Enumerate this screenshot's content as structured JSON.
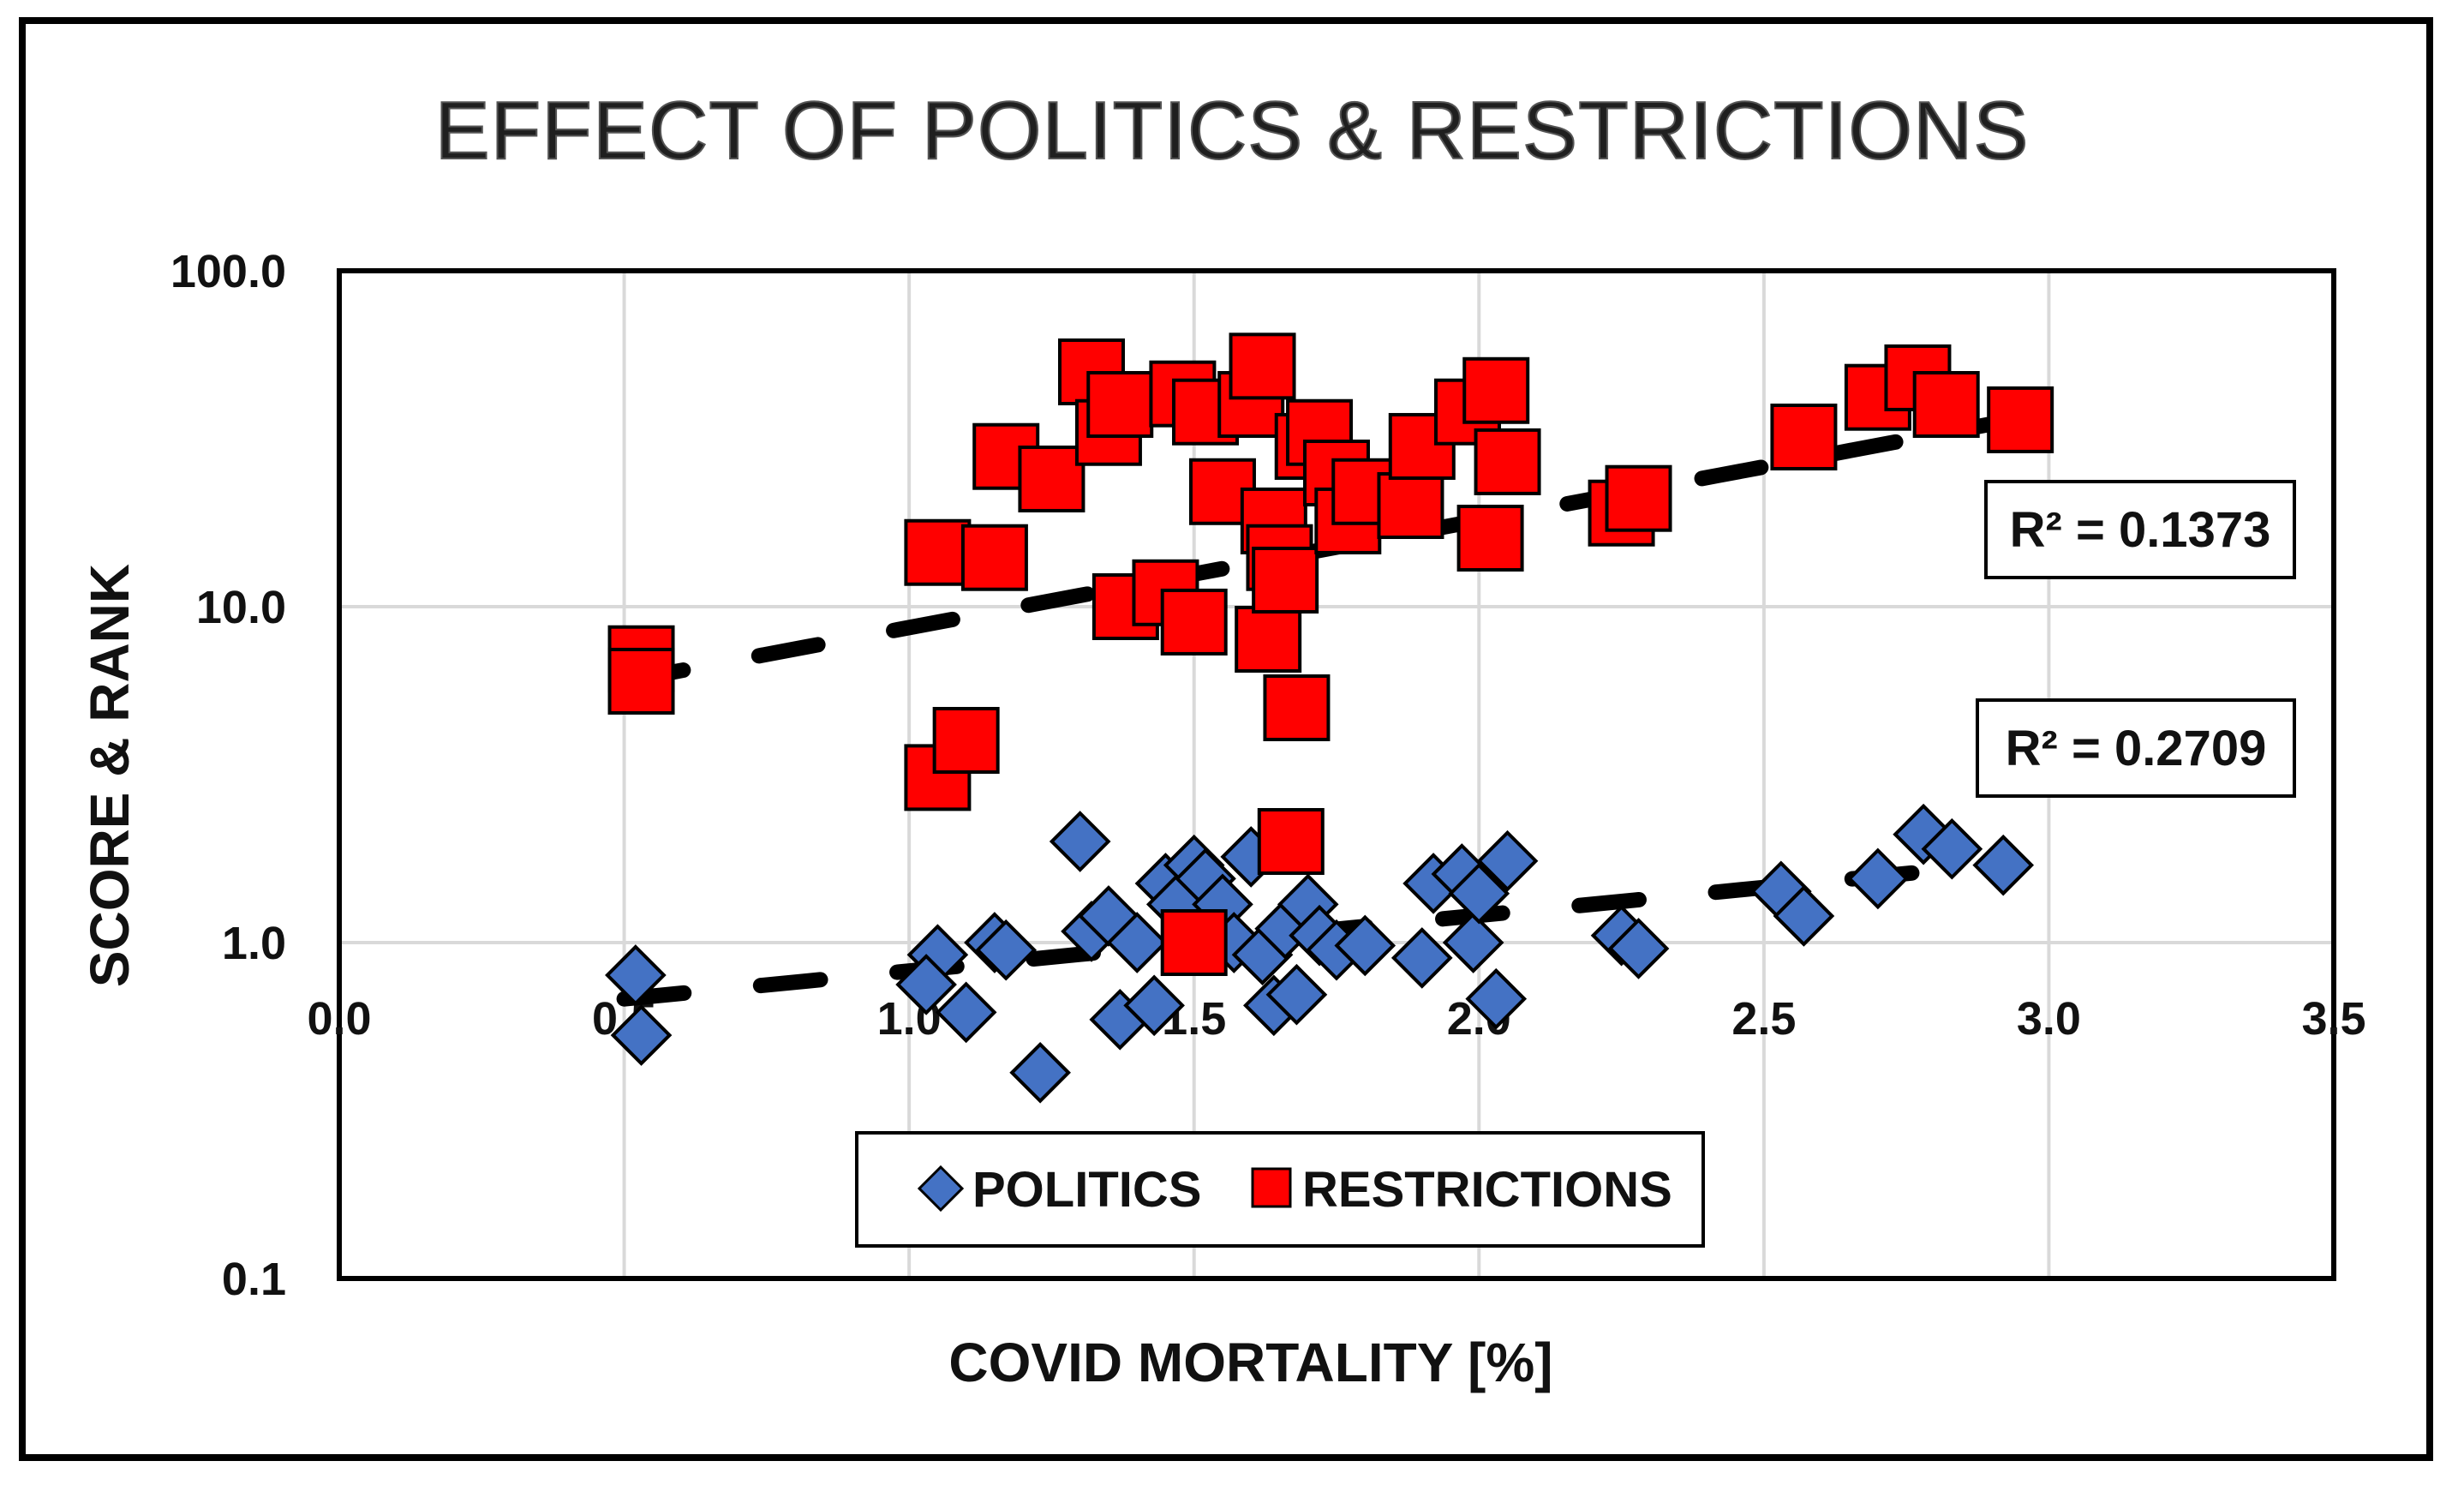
{
  "chart_data": {
    "type": "scatter",
    "title": "EFFECT OF POLITICS & RESTRICTIONS",
    "xlabel": "COVID MORTALITY [%]",
    "ylabel": "SCORE & RANK",
    "xlim": [
      0.0,
      3.5
    ],
    "ylim": [
      0.1,
      100.0
    ],
    "yscale": "log",
    "grid": true,
    "legend_position": "bottom-center",
    "x_ticks": [
      "0.0",
      "0.5",
      "1.0",
      "1.5",
      "2.0",
      "2.5",
      "3.0",
      "3.5"
    ],
    "y_ticks": [
      "0.1",
      "1.0",
      "10.0",
      "100.0"
    ],
    "series": [
      {
        "name": "POLITICS",
        "marker": "diamond",
        "color": "#4472C4",
        "r2_label": "R² = 0.2709",
        "trendline": {
          "x": [
            0.5,
            2.9
          ],
          "y": [
            0.68,
            1.7
          ]
        },
        "points": [
          [
            0.52,
            0.8
          ],
          [
            0.53,
            0.53
          ],
          [
            1.05,
            0.92
          ],
          [
            1.03,
            0.75
          ],
          [
            1.1,
            0.62
          ],
          [
            1.15,
            1.0
          ],
          [
            1.17,
            0.95
          ],
          [
            1.23,
            0.41
          ],
          [
            1.3,
            2.0
          ],
          [
            1.32,
            1.08
          ],
          [
            1.35,
            1.2
          ],
          [
            1.37,
            0.59
          ],
          [
            1.4,
            1.0
          ],
          [
            1.43,
            0.65
          ],
          [
            1.45,
            1.5
          ],
          [
            1.47,
            1.3
          ],
          [
            1.5,
            1.7
          ],
          [
            1.52,
            1.55
          ],
          [
            1.55,
            1.3
          ],
          [
            1.57,
            1.0
          ],
          [
            1.6,
            1.8
          ],
          [
            1.62,
            0.92
          ],
          [
            1.64,
            0.65
          ],
          [
            1.66,
            1.1
          ],
          [
            1.68,
            0.7
          ],
          [
            1.7,
            1.3
          ],
          [
            1.72,
            1.05
          ],
          [
            1.75,
            0.95
          ],
          [
            1.8,
            0.98
          ],
          [
            1.9,
            0.9
          ],
          [
            1.92,
            1.5
          ],
          [
            1.97,
            1.6
          ],
          [
            1.99,
            1.0
          ],
          [
            2.0,
            1.4
          ],
          [
            2.03,
            0.68
          ],
          [
            2.05,
            1.75
          ],
          [
            2.25,
            1.05
          ],
          [
            2.28,
            0.96
          ],
          [
            2.53,
            1.42
          ],
          [
            2.57,
            1.2
          ],
          [
            2.7,
            1.55
          ],
          [
            2.78,
            2.1
          ],
          [
            2.83,
            1.9
          ],
          [
            2.92,
            1.7
          ]
        ]
      },
      {
        "name": "RESTRICTIONS",
        "marker": "square",
        "color": "#FF0000",
        "r2_label": "R² = 0.1373",
        "trendline": {
          "x": [
            0.5,
            2.9
          ],
          "y": [
            6.0,
            35.0
          ]
        },
        "points": [
          [
            0.53,
            7.0
          ],
          [
            0.53,
            6.0
          ],
          [
            1.05,
            14.5
          ],
          [
            1.05,
            3.1
          ],
          [
            1.1,
            4.0
          ],
          [
            1.15,
            14.0
          ],
          [
            1.17,
            28.0
          ],
          [
            1.25,
            24.0
          ],
          [
            1.32,
            50.0
          ],
          [
            1.35,
            33.0
          ],
          [
            1.37,
            40.0
          ],
          [
            1.38,
            10.0
          ],
          [
            1.45,
            11.0
          ],
          [
            1.48,
            43.0
          ],
          [
            1.5,
            9.0
          ],
          [
            1.52,
            38.0
          ],
          [
            1.55,
            22.0
          ],
          [
            1.6,
            40.0
          ],
          [
            1.62,
            52.0
          ],
          [
            1.63,
            8.0
          ],
          [
            1.64,
            18.0
          ],
          [
            1.65,
            14.0
          ],
          [
            1.66,
            12.0
          ],
          [
            1.67,
            2.0
          ],
          [
            1.68,
            5.0
          ],
          [
            1.7,
            30.0
          ],
          [
            1.72,
            33.0
          ],
          [
            1.75,
            25.0
          ],
          [
            1.77,
            18.0
          ],
          [
            1.8,
            22.0
          ],
          [
            1.88,
            20.0
          ],
          [
            1.9,
            30.0
          ],
          [
            1.98,
            38.0
          ],
          [
            2.02,
            16.0
          ],
          [
            2.03,
            44.0
          ],
          [
            2.05,
            27.0
          ],
          [
            2.25,
            19.0
          ],
          [
            2.28,
            21.0
          ],
          [
            2.57,
            32.0
          ],
          [
            2.7,
            42.0
          ],
          [
            2.77,
            48.0
          ],
          [
            2.82,
            40.0
          ],
          [
            2.95,
            36.0
          ],
          [
            1.5,
            1.0
          ]
        ]
      }
    ]
  },
  "colors": {
    "politics_fill": "#4472C4",
    "restrictions_fill": "#FF0000",
    "trendline": "#000000",
    "grid": "#d9d9d9"
  }
}
